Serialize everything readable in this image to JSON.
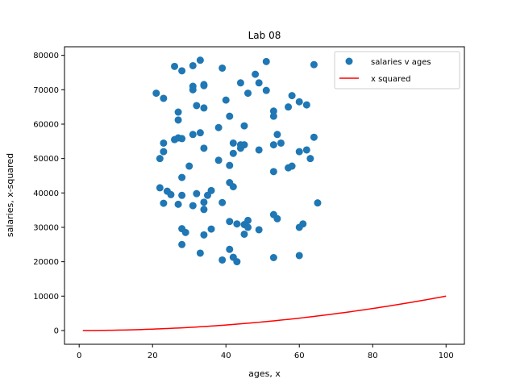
{
  "chart_data": {
    "type": "scatter",
    "title": "Lab 08",
    "xlabel": "ages, x",
    "ylabel": "salaries, x-squared",
    "xlim": [
      -4,
      105
    ],
    "ylim": [
      -4000,
      82500
    ],
    "xticks": [
      0,
      20,
      40,
      60,
      80,
      100
    ],
    "yticks": [
      0,
      10000,
      20000,
      30000,
      40000,
      50000,
      60000,
      70000,
      80000
    ],
    "grid": false,
    "legend_position": "upper right",
    "legend": [
      {
        "label": "salaries v ages",
        "kind": "marker",
        "color": "#1f77b4"
      },
      {
        "label": "x squared",
        "kind": "line",
        "color": "#ff0000"
      }
    ],
    "series": [
      {
        "name": "salaries v ages",
        "kind": "scatter",
        "color": "#1f77b4",
        "points": [
          [
            21,
            69000
          ],
          [
            22,
            50000
          ],
          [
            22,
            41500
          ],
          [
            23,
            67500
          ],
          [
            23,
            54500
          ],
          [
            23,
            52000
          ],
          [
            23,
            37000
          ],
          [
            24,
            40500
          ],
          [
            25,
            39500
          ],
          [
            26,
            76800
          ],
          [
            26,
            55500
          ],
          [
            27,
            63500
          ],
          [
            27,
            61200
          ],
          [
            27,
            56000
          ],
          [
            27,
            36700
          ],
          [
            28,
            75500
          ],
          [
            28,
            55800
          ],
          [
            28,
            44500
          ],
          [
            28,
            39300
          ],
          [
            28,
            29600
          ],
          [
            28,
            25000
          ],
          [
            29,
            28500
          ],
          [
            30,
            47800
          ],
          [
            31,
            77000
          ],
          [
            31,
            71000
          ],
          [
            31,
            70000
          ],
          [
            31,
            57000
          ],
          [
            31,
            36300
          ],
          [
            32,
            65400
          ],
          [
            32,
            39800
          ],
          [
            33,
            78600
          ],
          [
            33,
            57500
          ],
          [
            33,
            22500
          ],
          [
            34,
            71500
          ],
          [
            34,
            71200
          ],
          [
            34,
            64700
          ],
          [
            34,
            53000
          ],
          [
            34,
            37300
          ],
          [
            34,
            35200
          ],
          [
            34,
            27800
          ],
          [
            35,
            39300
          ],
          [
            36,
            40700
          ],
          [
            36,
            29500
          ],
          [
            38,
            59000
          ],
          [
            38,
            49500
          ],
          [
            39,
            76300
          ],
          [
            39,
            37200
          ],
          [
            39,
            20500
          ],
          [
            40,
            67000
          ],
          [
            41,
            62300
          ],
          [
            41,
            48000
          ],
          [
            41,
            43000
          ],
          [
            41,
            31700
          ],
          [
            41,
            23600
          ],
          [
            42,
            54500
          ],
          [
            42,
            51500
          ],
          [
            42,
            41800
          ],
          [
            42,
            21300
          ],
          [
            43,
            20000
          ],
          [
            43,
            31000
          ],
          [
            44,
            72000
          ],
          [
            44,
            54000
          ],
          [
            44,
            53000
          ],
          [
            45,
            59500
          ],
          [
            45,
            54000
          ],
          [
            45,
            30800
          ],
          [
            45,
            28000
          ],
          [
            46,
            69000
          ],
          [
            46,
            32000
          ],
          [
            46,
            30000
          ],
          [
            48,
            74500
          ],
          [
            49,
            72000
          ],
          [
            49,
            52500
          ],
          [
            49,
            29300
          ],
          [
            51,
            78200
          ],
          [
            51,
            69800
          ],
          [
            53,
            63800
          ],
          [
            53,
            62300
          ],
          [
            53,
            54000
          ],
          [
            53,
            46200
          ],
          [
            53,
            33700
          ],
          [
            53,
            21200
          ],
          [
            54,
            57000
          ],
          [
            54,
            32500
          ],
          [
            55,
            54500
          ],
          [
            57,
            65000
          ],
          [
            57,
            47300
          ],
          [
            58,
            68300
          ],
          [
            58,
            47800
          ],
          [
            60,
            66500
          ],
          [
            60,
            52000
          ],
          [
            60,
            30000
          ],
          [
            60,
            21800
          ],
          [
            61,
            31000
          ],
          [
            62,
            65600
          ],
          [
            62,
            52500
          ],
          [
            63,
            50000
          ],
          [
            64,
            77300
          ],
          [
            64,
            56200
          ],
          [
            65,
            37100
          ]
        ]
      },
      {
        "name": "x squared",
        "kind": "line",
        "color": "#ff0000",
        "function": "x^2",
        "x_range": [
          1,
          100
        ]
      }
    ]
  }
}
